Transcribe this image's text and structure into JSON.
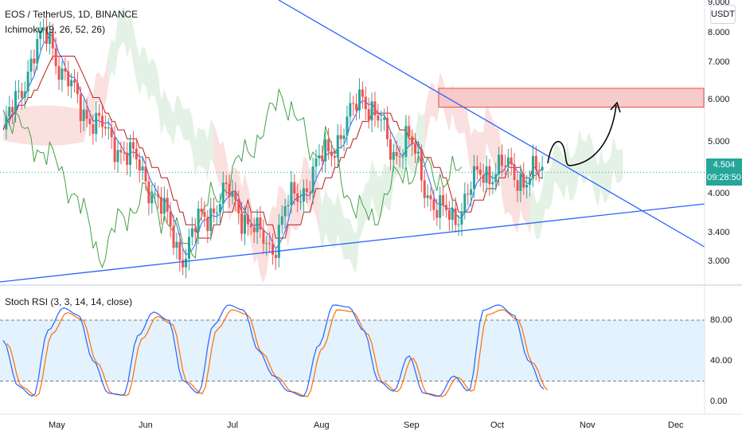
{
  "legend": {
    "symbol": "EOS / TetherUS, 1D, BINANCE",
    "ichimoku": "Ichimoku (9, 26, 52, 26)",
    "stoch": "Stoch RSI (3, 3, 14, 14, close)"
  },
  "currency": "USDT",
  "price_axis": [
    "9.000",
    "8.000",
    "7.000",
    "6.000",
    "5.000",
    "4.000",
    "3.400",
    "3.000"
  ],
  "stoch_axis": [
    "80.00",
    "40.00",
    "0.00"
  ],
  "months": [
    "May",
    "Jun",
    "Jul",
    "Aug",
    "Sep",
    "Oct",
    "Nov",
    "Dec"
  ],
  "last_price": "4.504",
  "countdown": "09:28:50",
  "colors": {
    "up": "#26a69a",
    "down": "#ef5350",
    "trendline": "#2962ff",
    "kijun": "#b71c1c",
    "tenkan": "#2962ff",
    "chikou": "#43a047",
    "cloud_bear": "#f8c6c6",
    "cloud_bull": "#cde8cf",
    "stoch_k": "#2962ff",
    "stoch_d": "#ff6d00",
    "stoch_band": "#e3f2fd"
  },
  "chart_data": {
    "type": "candlestick",
    "series": [
      {
        "name": "EOS / TetherUS, 1D, BINANCE",
        "close_approx": [
          5.3,
          6.2,
          7.5,
          8.1,
          6.9,
          6.0,
          5.7,
          5.2,
          5.0,
          4.6,
          4.2,
          3.6,
          3.1,
          3.6,
          3.9,
          4.1,
          3.8,
          3.4,
          3.3,
          3.9,
          4.2,
          4.6,
          5.1,
          5.5,
          6.4,
          5.6,
          4.9,
          5.2,
          4.4,
          3.8,
          3.7,
          4.1,
          4.5,
          4.6,
          4.5,
          4.4,
          4.5
        ]
      },
      {
        "name": "Ichimoku (9, 26, 52, 26)"
      },
      {
        "name": "Stoch RSI (3, 3, 14, 14, close)",
        "k_approx": [
          60,
          15,
          5,
          70,
          92,
          85,
          40,
          8,
          6,
          65,
          88,
          80,
          20,
          8,
          75,
          95,
          90,
          50,
          25,
          10,
          5,
          55,
          95,
          93,
          70,
          20,
          10,
          45,
          8,
          5,
          25,
          10,
          90,
          95,
          85,
          40,
          12
        ]
      }
    ],
    "price_range": [
      2.8,
      9.0
    ],
    "stoch_range": [
      0,
      100
    ],
    "stoch_levels": [
      20,
      80
    ],
    "resistance_zone": [
      5.95,
      6.45
    ],
    "current_price": 4.504
  }
}
